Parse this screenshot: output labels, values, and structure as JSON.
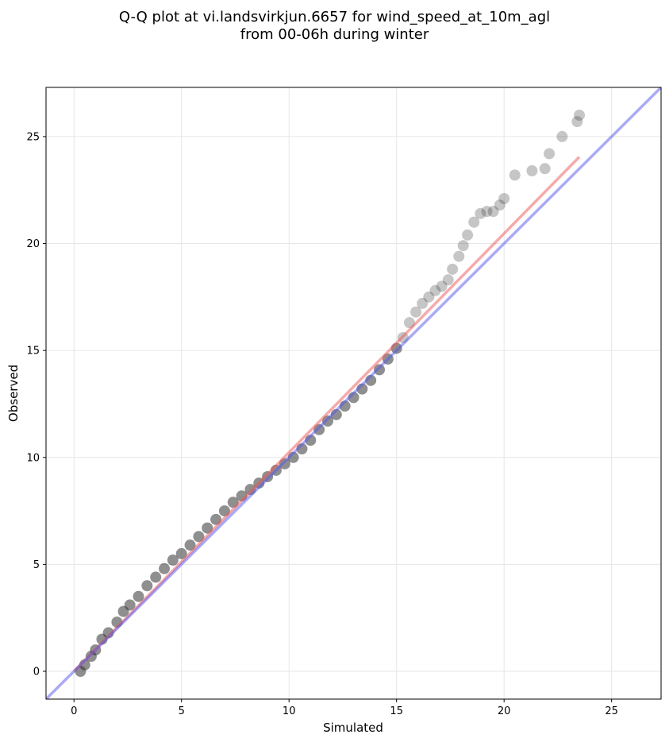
{
  "chart_data": {
    "type": "scatter",
    "title_lines": [
      "Q-Q plot at vi.landsvirkjun.6657 for wind_speed_at_10m_agl",
      "from 00-06h during winter"
    ],
    "xlabel": "Simulated",
    "ylabel": "Observed",
    "xlim": [
      -1.3,
      27.3
    ],
    "ylim": [
      -1.3,
      27.3
    ],
    "xticks": [
      0,
      5,
      10,
      15,
      20,
      25
    ],
    "yticks": [
      0,
      5,
      10,
      15,
      20,
      25
    ],
    "grid": true,
    "colors": {
      "points": "#333333",
      "fit_line": "#ee5555",
      "identity_line": "#5555ee",
      "grid": "#e6e6e6"
    },
    "points_dense": {
      "x": [
        0.3,
        0.5,
        0.8,
        1.0,
        1.3,
        1.6,
        2.0,
        2.3,
        2.6,
        3.0,
        3.4,
        3.8,
        4.2,
        4.6,
        5.0,
        5.4,
        5.8,
        6.2,
        6.6,
        7.0,
        7.4,
        7.8,
        8.2,
        8.6,
        9.0,
        9.4,
        9.8,
        10.2,
        10.6,
        11.0,
        11.4,
        11.8,
        12.2,
        12.6,
        13.0,
        13.4,
        13.8,
        14.2,
        14.6,
        15.0
      ],
      "y": [
        0.0,
        0.3,
        0.7,
        1.0,
        1.5,
        1.8,
        2.3,
        2.8,
        3.1,
        3.5,
        4.0,
        4.4,
        4.8,
        5.2,
        5.5,
        5.9,
        6.3,
        6.7,
        7.1,
        7.5,
        7.9,
        8.2,
        8.5,
        8.8,
        9.1,
        9.4,
        9.7,
        10.0,
        10.4,
        10.8,
        11.3,
        11.7,
        12.0,
        12.4,
        12.8,
        13.2,
        13.6,
        14.1,
        14.6,
        15.1
      ]
    },
    "points_tail": {
      "x": [
        15.3,
        15.6,
        15.9,
        16.2,
        16.5,
        16.8,
        17.1,
        17.4,
        17.6,
        17.9,
        18.1,
        18.3,
        18.6,
        18.9,
        19.2,
        19.5,
        19.8,
        20.0,
        20.5,
        21.3,
        21.9,
        22.1,
        22.7,
        23.4,
        23.5
      ],
      "y": [
        15.6,
        16.3,
        16.8,
        17.2,
        17.5,
        17.8,
        18.0,
        18.3,
        18.8,
        19.4,
        19.9,
        20.4,
        21.0,
        21.4,
        21.5,
        21.5,
        21.8,
        22.1,
        23.2,
        23.4,
        23.5,
        24.2,
        25.0,
        25.7,
        26.0
      ]
    },
    "fit_line": {
      "x": [
        0.0,
        23.5
      ],
      "y": [
        0.0,
        24.05
      ]
    },
    "identity_line": {
      "x": [
        -1.3,
        27.3
      ],
      "y": [
        -1.3,
        27.3
      ]
    }
  }
}
